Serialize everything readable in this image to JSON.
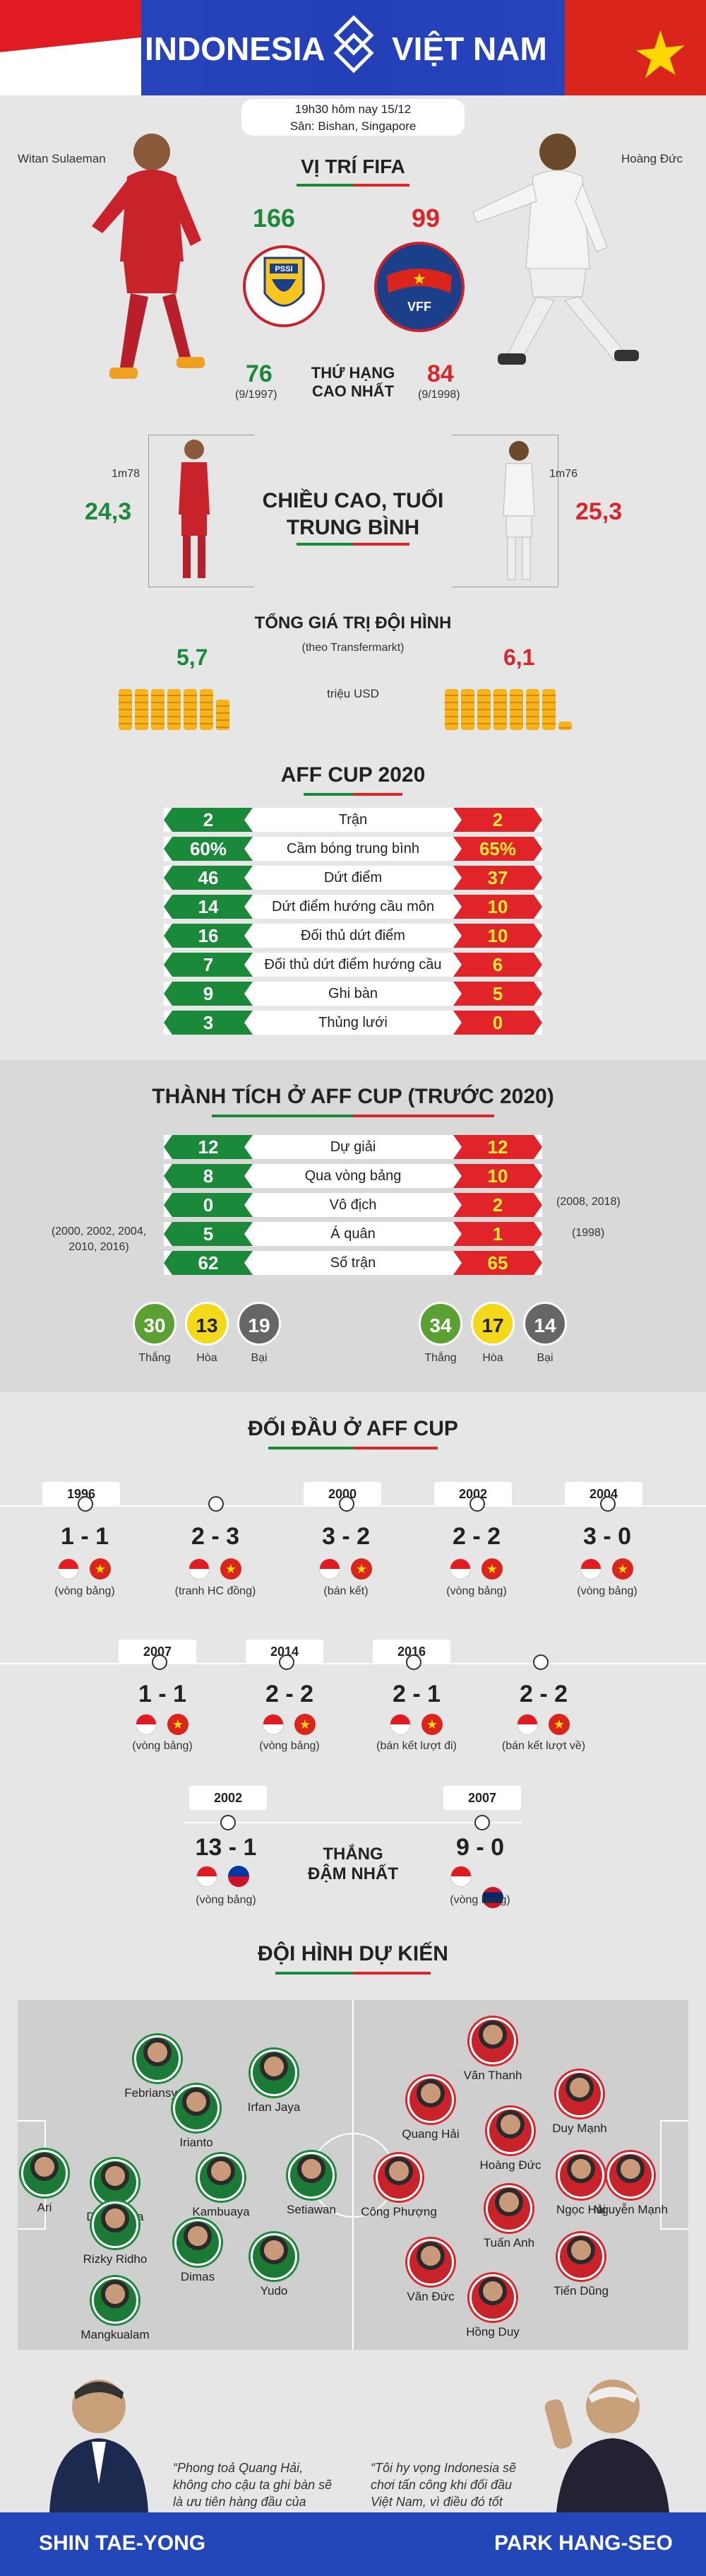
{
  "header": {
    "team_left": "INDONESIA",
    "team_right": "VIỆT NAM",
    "match_time": "19h30 hôm nay 15/12",
    "venue": "Sân: Bishan, Singapore",
    "player_left": "Witan Sulaeman",
    "player_right": "Hoàng Đức"
  },
  "fifa": {
    "title": "VỊ TRÍ FIFA",
    "left_rank": "166",
    "right_rank": "99",
    "best_label_1": "THỨ HẠNG",
    "best_label_2": "CAO NHẤT",
    "left_best": "76",
    "left_best_date": "(9/1997)",
    "right_best": "84",
    "right_best_date": "(9/1998)",
    "pssi_text": "FOOTBALL ASSOCIATION OF INDONESIA",
    "pssi_abbr": "PSSI",
    "vff_abbr": "VFF"
  },
  "height": {
    "title_1": "CHIỀU CAO, TUỔI",
    "title_2": "TRUNG BÌNH",
    "left_height": "1m78",
    "right_height": "1m76",
    "left_age": "24,3",
    "right_age": "25,3"
  },
  "value": {
    "title": "TỔNG GIÁ TRỊ ĐỘI HÌNH",
    "subtitle": "(theo Transfermarkt)",
    "unit": "triệu USD",
    "left": "5,7",
    "right": "6,1"
  },
  "aff2020": {
    "title": "AFF CUP 2020",
    "rows": [
      {
        "left": "2",
        "label": "Trận",
        "right": "2"
      },
      {
        "left": "60%",
        "label": "Cầm bóng trung bình",
        "right": "65%"
      },
      {
        "left": "46",
        "label": "Dứt điểm",
        "right": "37"
      },
      {
        "left": "14",
        "label": "Dứt điểm hướng cầu môn",
        "right": "10"
      },
      {
        "left": "16",
        "label": "Đối thủ dứt điểm",
        "right": "10"
      },
      {
        "left": "7",
        "label": "Đối thủ dứt điểm hướng cầu môn",
        "right": "6"
      },
      {
        "left": "9",
        "label": "Ghi bàn",
        "right": "5"
      },
      {
        "left": "3",
        "label": "Thủng lưới",
        "right": "0"
      }
    ]
  },
  "achievements": {
    "title": "THÀNH TÍCH Ở AFF CUP (TRƯỚC 2020)",
    "rows": [
      {
        "left": "12",
        "label": "Dự giải",
        "right": "12"
      },
      {
        "left": "8",
        "label": "Qua vòng bảng",
        "right": "10"
      },
      {
        "left": "0",
        "label": "Vô địch",
        "right": "2"
      },
      {
        "left": "5",
        "label": "Á quân",
        "right": "1"
      },
      {
        "left": "62",
        "label": "Số trận",
        "right": "65"
      }
    ],
    "left_note": "(2000, 2002, 2004,\n2010, 2016)",
    "right_note_1": "(2008, 2018)",
    "right_note_2": "(1998)",
    "left_win": "30",
    "left_draw": "13",
    "left_loss": "19",
    "right_win": "34",
    "right_draw": "17",
    "right_loss": "14",
    "win_label": "Thắng",
    "draw_label": "Hòa",
    "loss_label": "Bại"
  },
  "h2h": {
    "title": "ĐỐI ĐẦU Ở AFF CUP",
    "row1": [
      {
        "year": "1996",
        "score": "1 - 1",
        "note": "(vòng bảng)"
      },
      {
        "year": "",
        "score": "2 - 3",
        "note": "(tranh HC đồng)"
      },
      {
        "year": "2000",
        "score": "3 - 2",
        "note": "(bán kết)"
      },
      {
        "year": "2002",
        "score": "2 - 2",
        "note": "(vòng bảng)"
      },
      {
        "year": "2004",
        "score": "3 - 0",
        "note": "(vòng bảng)"
      }
    ],
    "row2": [
      {
        "year": "2007",
        "score": "1 - 1",
        "note": "(vòng bảng)"
      },
      {
        "year": "2014",
        "score": "2 - 2",
        "note": "(vòng bảng)"
      },
      {
        "year": "2016",
        "score": "2 - 1",
        "note": "(bán kết lượt đi)"
      },
      {
        "year": "",
        "score": "2 - 2",
        "note": "(bán kết lượt về)"
      }
    ],
    "big_win_label_1": "THẮNG",
    "big_win_label_2": "ĐẬM NHẤT",
    "big_left": {
      "year": "2002",
      "score": "13 - 1",
      "note": "(vòng bảng)"
    },
    "big_right": {
      "year": "2007",
      "score": "9 - 0",
      "note": "(vòng bảng)"
    }
  },
  "lineup": {
    "title": "ĐỘI HÌNH DỰ KIẾN",
    "indonesia": [
      "Febriansyah",
      "Irfan Jaya",
      "Irianto",
      "Dewangga",
      "Ari",
      "Kambuaya",
      "Setiawan",
      "Rizky Ridho",
      "Dimas",
      "Yudo",
      "Mangkualam"
    ],
    "vietnam": [
      "Văn Thanh",
      "Quang Hải",
      "Duy Mạnh",
      "Hoàng Đức",
      "Nguyễn Mạnh",
      "Công Phượng",
      "Ngọc Hải",
      "Tuấn Anh",
      "Văn Đức",
      "Tiến Dũng",
      "Hồng Duy"
    ]
  },
  "quotes": {
    "left": "“Phong toả Quang Hải, không cho cậu ta ghi bàn sẽ là ưu tiên hàng đầu của Indonesia”.",
    "right": "“Tôi hy vọng Indonesia sẽ chơi tấn công khi đối đầu Việt Nam, vì điều đó tốt cho chúng ta”.",
    "coach_left": "SHIN TAE-YONG",
    "coach_right": "PARK HANG-SEO"
  },
  "colors": {
    "green": "#1a8a3a",
    "red": "#d9262b",
    "blue": "#2346b8",
    "yellow": "#ffd800"
  }
}
